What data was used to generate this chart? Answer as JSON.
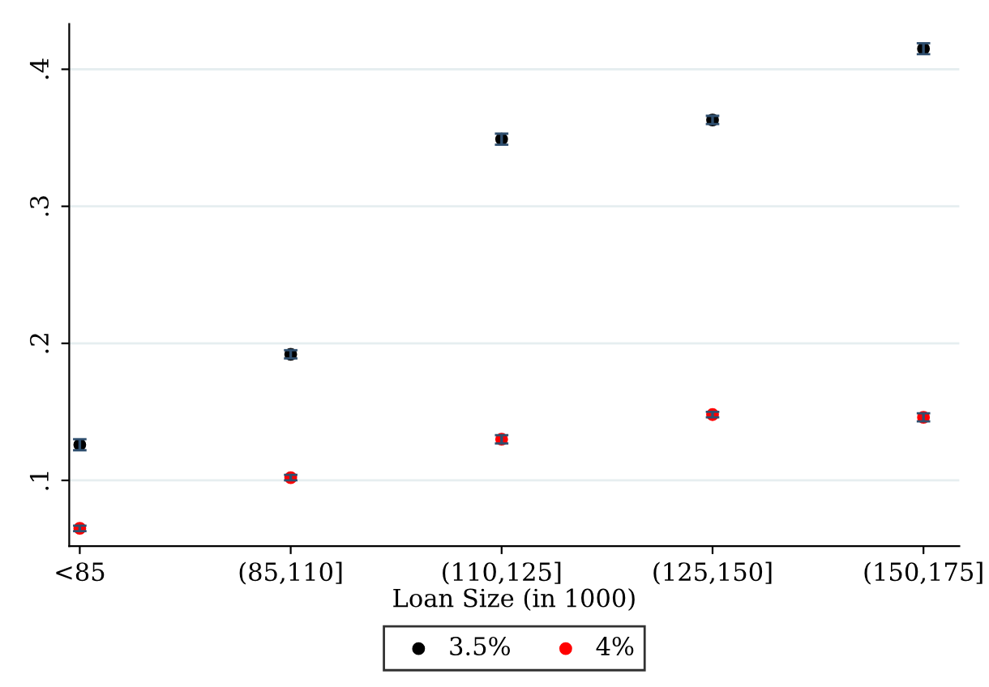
{
  "chart_data": {
    "type": "scatter",
    "xlabel": "Loan Size (in 1000)",
    "categories": [
      "<85",
      "(85,110]",
      "(110,125]",
      "(125,150]",
      "(150,175]"
    ],
    "series": [
      {
        "name": "3.5%",
        "color": "#000000",
        "values": [
          0.126,
          0.192,
          0.349,
          0.363,
          0.415
        ],
        "errors": [
          0.004,
          0.003,
          0.004,
          0.003,
          0.004
        ]
      },
      {
        "name": "4%",
        "color": "#ff0000",
        "values": [
          0.065,
          0.102,
          0.13,
          0.148,
          0.146
        ],
        "errors": [
          0.002,
          0.002,
          0.003,
          0.002,
          0.003
        ]
      }
    ],
    "ylim": [
      0.052,
      0.433
    ],
    "yticks": [
      {
        "value": 0.1,
        "label": ".1"
      },
      {
        "value": 0.2,
        "label": ".2"
      },
      {
        "value": 0.3,
        "label": ".3"
      },
      {
        "value": 0.4,
        "label": ".4"
      }
    ],
    "grid": "y",
    "legend": "bottom",
    "marker": "circle"
  }
}
